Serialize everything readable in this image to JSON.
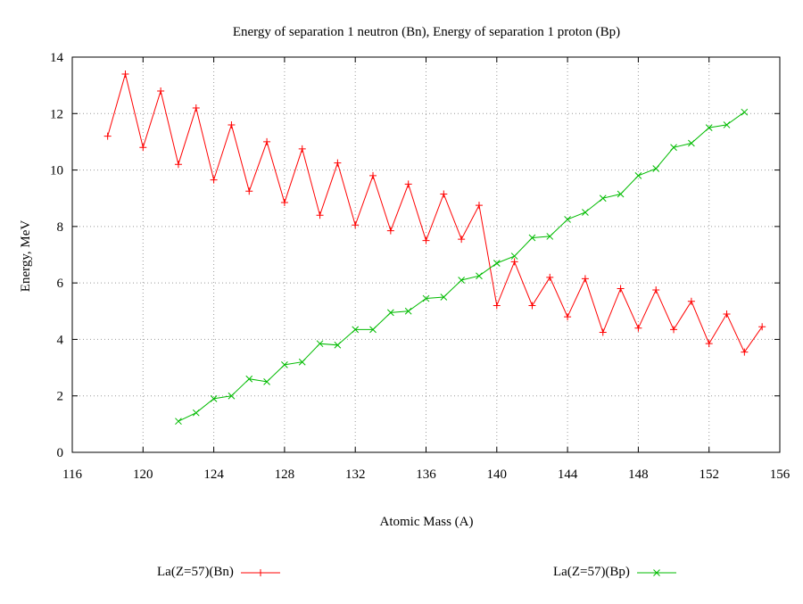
{
  "chart_data": {
    "type": "line",
    "title": "Energy of separation 1 neutron (Bn), Energy of separation 1 proton (Bp)",
    "xlabel": "Atomic Mass (A)",
    "ylabel": "Energy, MeV",
    "xlim": [
      116,
      156
    ],
    "ylim": [
      0,
      14
    ],
    "xticks": [
      116,
      120,
      124,
      128,
      132,
      136,
      140,
      144,
      148,
      152,
      156
    ],
    "yticks": [
      0,
      2,
      4,
      6,
      8,
      10,
      12,
      14
    ],
    "grid": true,
    "legend_position": "bottom",
    "series": [
      {
        "name": "La(Z=57)(Bn)",
        "color": "#ff0000",
        "marker": "plus",
        "x": [
          118,
          119,
          120,
          121,
          122,
          123,
          124,
          125,
          126,
          127,
          128,
          129,
          130,
          131,
          132,
          133,
          134,
          135,
          136,
          137,
          138,
          139,
          140,
          141,
          142,
          143,
          144,
          145,
          146,
          147,
          148,
          149,
          150,
          151,
          152,
          153,
          154,
          155
        ],
        "y": [
          11.2,
          13.4,
          10.8,
          12.8,
          10.2,
          12.2,
          9.65,
          11.6,
          9.25,
          11.0,
          8.85,
          10.75,
          8.4,
          10.25,
          8.05,
          9.8,
          7.85,
          9.5,
          7.5,
          9.15,
          7.55,
          8.75,
          5.2,
          6.75,
          5.2,
          6.2,
          4.8,
          6.15,
          4.25,
          5.8,
          4.4,
          5.75,
          4.35,
          5.35,
          3.85,
          4.9,
          3.55,
          4.45
        ]
      },
      {
        "name": "La(Z=57)(Bp)",
        "color": "#00bb00",
        "marker": "x",
        "x": [
          122,
          123,
          124,
          125,
          126,
          127,
          128,
          129,
          130,
          131,
          132,
          133,
          134,
          135,
          136,
          137,
          138,
          139,
          140,
          141,
          142,
          143,
          144,
          145,
          146,
          147,
          148,
          149,
          150,
          151,
          152,
          153,
          154
        ],
        "y": [
          1.1,
          1.4,
          1.9,
          2.0,
          2.6,
          2.5,
          3.1,
          3.2,
          3.85,
          3.8,
          4.35,
          4.35,
          4.95,
          5.0,
          5.45,
          5.5,
          6.1,
          6.25,
          6.7,
          6.95,
          7.6,
          7.65,
          8.25,
          8.5,
          9.0,
          9.15,
          9.8,
          10.05,
          10.8,
          10.95,
          11.5,
          11.6,
          12.05
        ]
      }
    ]
  }
}
